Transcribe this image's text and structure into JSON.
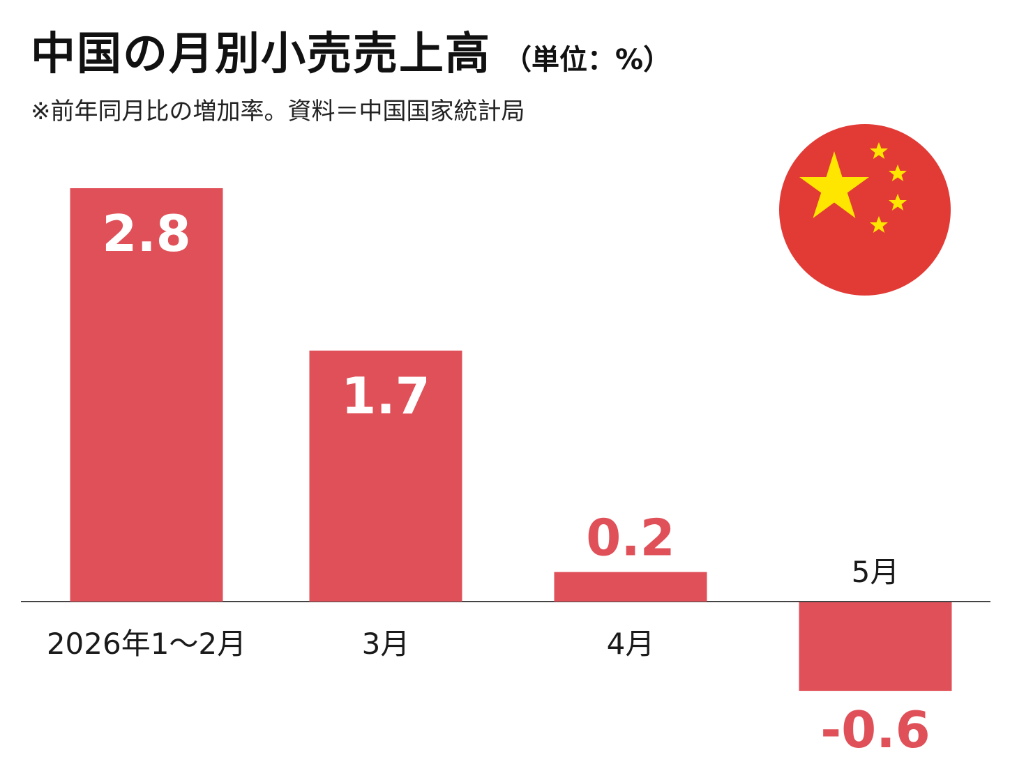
{
  "header": {
    "title": "中国の月別小売売上高",
    "unit": "（単位：%）",
    "subtitle": "※前年同月比の増加率。資料＝中国国家統計局"
  },
  "flag": {
    "icon": "china-flag-icon",
    "bg_color": "#e23b36",
    "star_color": "#ffe600"
  },
  "colors": {
    "bar": "#e05058",
    "negative_label": "#e05058",
    "value_label_inside": "#ffffff",
    "axis": "#444444"
  },
  "chart_data": {
    "type": "bar",
    "title": "中国の月別小売売上高",
    "ylabel": "%",
    "categories": [
      "2026年1～2月",
      "3月",
      "4月",
      "5月"
    ],
    "values": [
      2.8,
      1.7,
      0.2,
      -0.6
    ],
    "value_labels": [
      "2.8",
      "1.7",
      "0.2",
      "-0.6"
    ],
    "ylim": [
      -0.6,
      2.8
    ],
    "grid": false,
    "legend": "none"
  }
}
